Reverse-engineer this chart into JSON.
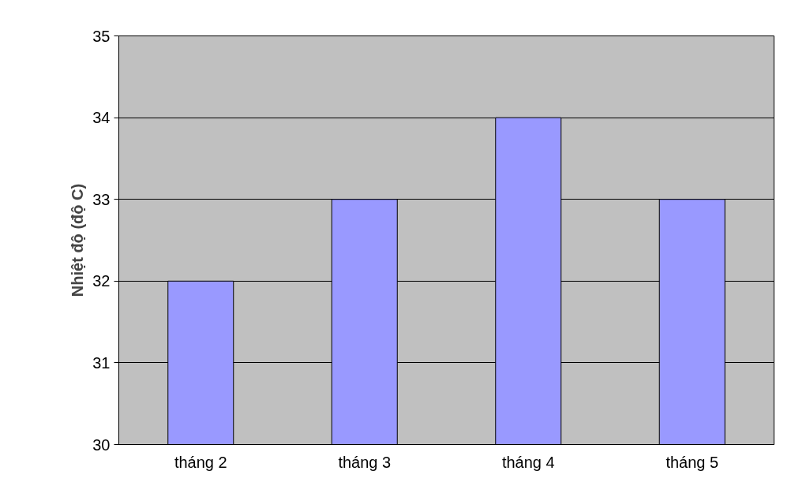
{
  "chart_data": {
    "type": "bar",
    "ylabel": "Nhiệt độ (độ C)",
    "categories": [
      "tháng 2",
      "tháng 3",
      "tháng 4",
      "tháng 5"
    ],
    "values": [
      32,
      33,
      34,
      33
    ],
    "color": "#9999ff",
    "ylim": [
      30,
      35
    ],
    "yticks": [
      30,
      31,
      32,
      33,
      34,
      35
    ],
    "grid": "y"
  }
}
